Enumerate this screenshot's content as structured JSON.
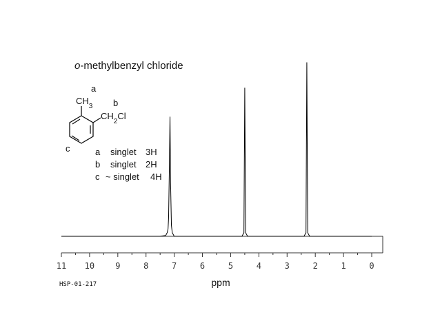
{
  "chart_data": {
    "type": "line",
    "title_italic": "o",
    "title": "-methylbenzyl chloride",
    "x_label": "ppm",
    "spectrum_id": "HSP-01-217",
    "structure": {
      "methyl": "CH3",
      "chloromethyl": "CH2Cl",
      "labels": [
        "a",
        "b",
        "c"
      ]
    },
    "assignments": [
      [
        "a",
        "singlet",
        "3H"
      ],
      [
        "b",
        "singlet",
        "2H"
      ],
      [
        "c",
        "~ singlet",
        "4H"
      ]
    ],
    "x": [
      11,
      7.5,
      7.3,
      7.25,
      7.22,
      7.2,
      7.17,
      7.15,
      7.13,
      7.1,
      7.07,
      7.0,
      4.6,
      4.53,
      4.5,
      4.47,
      4.4,
      2.4,
      2.33,
      2.3,
      2.27,
      2.2,
      0
    ],
    "values": [
      0,
      0,
      0.5,
      2,
      4,
      10,
      40,
      66,
      30,
      6,
      2,
      0,
      0,
      2,
      82,
      2,
      0,
      0,
      2,
      96,
      2,
      0,
      0
    ],
    "color": "#000000",
    "xlim": [
      11,
      0
    ],
    "ylim": [
      0,
      100
    ],
    "xticks": [
      11,
      10,
      9,
      8,
      7,
      6,
      5,
      4,
      3,
      2,
      1,
      0
    ],
    "xticks_minor": [
      10.5,
      9.5,
      8.5,
      7.5,
      6.5,
      5.5,
      4.5,
      3.5,
      2.5,
      1.5,
      0.5
    ],
    "grid": false
  }
}
